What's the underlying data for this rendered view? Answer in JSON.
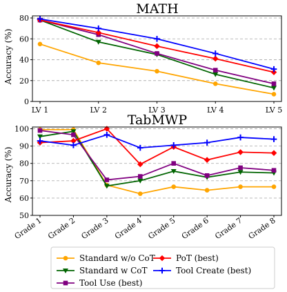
{
  "chart_data": [
    {
      "type": "line",
      "title": "MATH",
      "xlabel": "",
      "ylabel": "Accuracy (%)",
      "ylim": [
        0,
        82
      ],
      "yticks": [
        0,
        20,
        40,
        60,
        80
      ],
      "grid": "horizontal dashed",
      "categories": [
        "LV 1",
        "LV 2",
        "LV 3",
        "LV 4",
        "LV 5"
      ],
      "series": [
        {
          "name": "Standard w/o CoT",
          "color": "#FFA500",
          "marker": "circle",
          "values": [
            55,
            37,
            29,
            17,
            7
          ]
        },
        {
          "name": "Standard w CoT",
          "color": "#006400",
          "marker": "triangle-down",
          "values": [
            78,
            57,
            45,
            26,
            13
          ]
        },
        {
          "name": "Tool Use (best)",
          "color": "#800080",
          "marker": "square",
          "values": [
            78,
            64,
            46,
            30,
            17
          ]
        },
        {
          "name": "PoT (best)",
          "color": "#FF0000",
          "marker": "diamond",
          "values": [
            78,
            66,
            53,
            41,
            28
          ]
        },
        {
          "name": "Tool Create (best)",
          "color": "#0000FF",
          "marker": "plus",
          "values": [
            79,
            70,
            60,
            46,
            31
          ]
        }
      ]
    },
    {
      "type": "line",
      "title": "TabMWP",
      "xlabel": "",
      "ylabel": "Accuracy (%)",
      "ylim": [
        50,
        101
      ],
      "yticks": [
        50,
        60,
        70,
        80,
        90,
        100
      ],
      "grid": "horizontal dashed",
      "categories": [
        "Grade 1",
        "Grade 2",
        "Grade 3",
        "Grade 4",
        "Grade 5",
        "Grade 6",
        "Grade 7",
        "Grade 8"
      ],
      "series": [
        {
          "name": "Standard w/o CoT",
          "color": "#FFA500",
          "marker": "circle",
          "values": [
            99.5,
            99.5,
            67.5,
            62.5,
            66.5,
            64.5,
            66.5,
            66.5
          ]
        },
        {
          "name": "Standard w CoT",
          "color": "#006400",
          "marker": "triangle-down",
          "values": [
            95.5,
            98.5,
            67,
            70,
            75.5,
            72,
            75,
            74.5
          ]
        },
        {
          "name": "Tool Use (best)",
          "color": "#800080",
          "marker": "square",
          "values": [
            99,
            96.5,
            70.5,
            72.5,
            80,
            73,
            77.5,
            76
          ]
        },
        {
          "name": "PoT (best)",
          "color": "#FF0000",
          "marker": "diamond",
          "values": [
            92,
            93,
            100,
            79.5,
            89.5,
            82,
            86.5,
            86
          ]
        },
        {
          "name": "Tool Create (best)",
          "color": "#0000FF",
          "marker": "plus",
          "values": [
            93,
            90.5,
            96.5,
            89,
            90.5,
            92,
            95,
            94
          ]
        }
      ]
    }
  ],
  "legend": {
    "placement": "bottom",
    "entries": [
      "Standard w/o CoT",
      "PoT (best)",
      "Standard w CoT",
      "Tool Create (best)",
      "Tool Use (best)"
    ]
  }
}
